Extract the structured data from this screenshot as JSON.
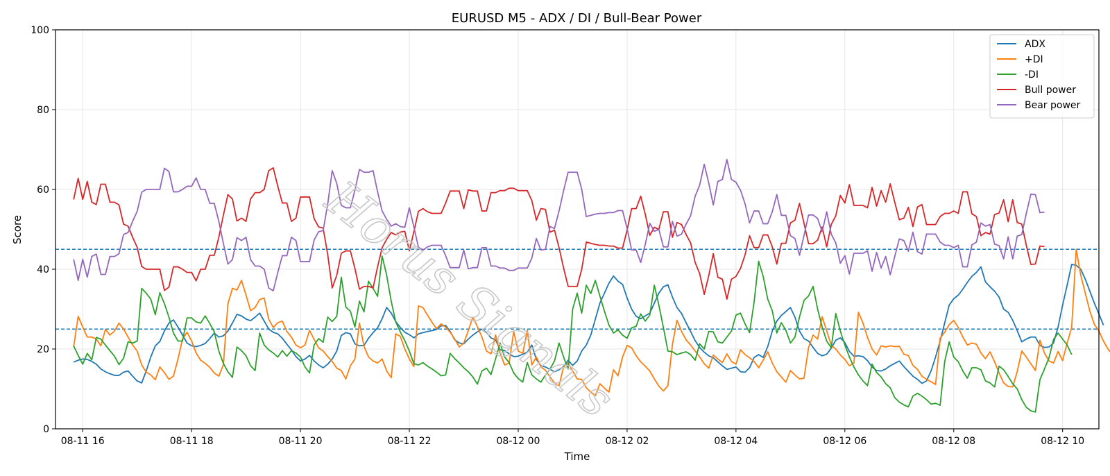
{
  "chart_data": {
    "type": "line",
    "title": "EURUSD M5 - ADX / DI / Bull-Bear Power",
    "xlabel": "Time",
    "ylabel": "Score",
    "ylim": [
      0,
      100
    ],
    "xlim": [
      "2025-08-11 15:30",
      "2025-08-12 10:40"
    ],
    "x_ticks": [
      {
        "t": "2025-08-11 16:00",
        "label": "08-11 16"
      },
      {
        "t": "2025-08-11 18:00",
        "label": "08-11 18"
      },
      {
        "t": "2025-08-11 20:00",
        "label": "08-11 20"
      },
      {
        "t": "2025-08-11 22:00",
        "label": "08-11 22"
      },
      {
        "t": "2025-08-12 00:00",
        "label": "08-12 00"
      },
      {
        "t": "2025-08-12 02:00",
        "label": "08-12 02"
      },
      {
        "t": "2025-08-12 04:00",
        "label": "08-12 04"
      },
      {
        "t": "2025-08-12 06:00",
        "label": "08-12 06"
      },
      {
        "t": "2025-08-12 08:00",
        "label": "08-12 08"
      },
      {
        "t": "2025-08-12 10:00",
        "label": "08-12 10"
      }
    ],
    "y_ticks": [
      0,
      20,
      40,
      60,
      80,
      100
    ],
    "grid": true,
    "legend_position": "top-right",
    "reference_lines": [
      {
        "y": 45,
        "style": "dashed",
        "color": "#1f77b4"
      },
      {
        "y": 25,
        "style": "dashed",
        "color": "#1f77b4"
      }
    ],
    "x_start": "2025-08-11 15:50",
    "x_step_minutes": 5,
    "series": [
      {
        "name": "ADX",
        "color": "#1f77b4",
        "values": [
          16.7,
          17.2,
          17.5,
          17.4,
          16.9,
          16.2,
          15.0,
          14.3,
          13.8,
          13.4,
          13.4,
          14.2,
          14.5,
          13.2,
          12.0,
          11.5,
          14.5,
          18.0,
          20.8,
          21.9,
          24.5,
          26.5,
          27.3,
          25.5,
          23.5,
          21.5,
          20.8,
          20.6,
          20.9,
          21.4,
          22.6,
          24.0,
          23.0,
          23.3,
          24.5,
          26.5,
          28.7,
          28.3,
          27.5,
          27.1,
          28.0,
          29.0,
          27.0,
          25.0,
          24.2,
          23.8,
          22.7,
          21.2,
          19.8,
          18.1,
          17.0,
          17.5,
          18.4,
          17.0,
          16.0,
          15.3,
          16.2,
          17.5,
          19.5,
          23.4,
          24.1,
          23.8,
          21.3,
          20.8,
          20.9,
          22.7,
          24.1,
          25.3,
          27.6,
          30.4,
          29.0,
          26.9,
          25.4,
          24.2,
          23.6,
          22.8,
          23.8,
          24.1,
          24.4,
          24.6,
          24.9,
          25.8,
          25.9,
          24.4,
          22.3,
          21.5,
          21.3,
          22.5,
          23.5,
          24.3,
          25.0,
          24.1,
          22.8,
          22.3,
          19.8,
          19.6,
          18.8,
          18.1,
          18.2,
          18.7,
          19.2,
          21.0,
          17.4,
          15.8,
          15.5,
          14.9,
          14.3,
          14.8,
          15.6,
          17.2,
          15.9,
          17.0,
          19.5,
          21.0,
          23.5,
          27.5,
          31.5,
          34.0,
          36.5,
          38.3,
          37.0,
          36.2,
          32.8,
          30.0,
          28.2,
          27.6,
          28.3,
          29.0,
          31.5,
          34.0,
          35.6,
          36.1,
          33.0,
          30.4,
          28.9,
          26.6,
          24.4,
          22.1,
          20.4,
          19.2,
          18.3,
          17.8,
          16.8,
          15.8,
          14.9,
          15.2,
          15.5,
          14.3,
          14.2,
          15.3,
          17.9,
          18.6,
          17.9,
          20.6,
          24.5,
          27.0,
          28.4,
          29.4,
          30.4,
          28.0,
          24.5,
          22.6,
          22.0,
          20.4,
          18.9,
          18.3,
          18.7,
          20.2,
          22.2,
          22.8,
          21.6,
          19.4,
          18.2,
          18.3,
          18.1,
          17.1,
          15.5,
          14.6,
          14.5,
          15.0,
          15.8,
          16.4,
          17.0,
          15.6,
          14.4,
          13.2,
          12.4,
          11.4,
          12.0,
          14.5,
          18.0,
          22.0,
          26.5,
          31.0,
          32.6,
          33.5,
          35.0,
          36.7,
          38.2,
          39.2,
          40.6,
          36.8,
          35.6,
          34.5,
          33.0,
          30.0,
          29.2,
          27.2,
          24.6,
          21.8,
          22.5,
          23.0,
          23.0,
          20.9,
          20.4,
          20.5,
          21.5,
          25.5,
          31.0,
          36.0,
          41.2,
          41.0,
          40.0,
          37.5,
          34.5,
          31.5,
          28.8,
          26.0
        ]
      },
      {
        "name": "+DI",
        "color": "#ff7f0e",
        "values": [
          20.5,
          28.2,
          25.5,
          23.0,
          23.0,
          22.5,
          20.8,
          24.9,
          23.5,
          24.5,
          26.5,
          25.0,
          23.0,
          21.0,
          19.5,
          16.0,
          14.2,
          13.5,
          12.3,
          15.5,
          14.1,
          12.4,
          13.2,
          17.5,
          22.5,
          24.2,
          22.0,
          19.0,
          17.2,
          16.4,
          15.4,
          14.0,
          13.2,
          16.0,
          31.3,
          35.2,
          34.8,
          37.2,
          33.5,
          29.6,
          30.4,
          32.4,
          32.8,
          27.5,
          25.4,
          26.6,
          27.0,
          24.4,
          23.0,
          21.0,
          20.3,
          21.0,
          24.7,
          22.4,
          20.3,
          19.5,
          18.1,
          16.9,
          15.2,
          14.6,
          12.5,
          15.8,
          17.5,
          26.5,
          20.7,
          18.0,
          17.0,
          16.5,
          17.5,
          14.5,
          12.8,
          23.8,
          23.2,
          20.0,
          17.5,
          15.6,
          30.8,
          30.4,
          28.5,
          26.7,
          25.1,
          26.3,
          25.5,
          24.2,
          22.5,
          20.5,
          21.5,
          24.6,
          28.0,
          25.6,
          23.0,
          19.5,
          18.8,
          23.5,
          19.0,
          16.0,
          16.5,
          24.4,
          19.5,
          18.9,
          24.7,
          16.0,
          18.0,
          15.5,
          14.7,
          13.0,
          11.5,
          10.8,
          15.5,
          16.5,
          14.5,
          12.5,
          12.4,
          10.3,
          9.2,
          8.3,
          11.3,
          10.2,
          9.2,
          14.8,
          13.3,
          18.0,
          20.9,
          20.3,
          18.3,
          16.8,
          15.7,
          14.5,
          12.5,
          10.7,
          9.5,
          10.8,
          21.2,
          27.2,
          24.4,
          22.3,
          21.0,
          19.5,
          18.0,
          16.3,
          15.2,
          18.5,
          17.5,
          16.6,
          18.8,
          16.9,
          16.2,
          19.8,
          18.6,
          17.8,
          16.9,
          15.3,
          17.2,
          19.3,
          16.5,
          14.3,
          13.0,
          11.7,
          14.6,
          13.5,
          12.5,
          12.7,
          20.4,
          23.5,
          22.5,
          28.1,
          24.5,
          21.0,
          20.0,
          18.5,
          17.4,
          15.8,
          16.5,
          29.2,
          26.5,
          22.9,
          20.0,
          18.5,
          20.8,
          20.5,
          20.8,
          20.6,
          20.7,
          18.7,
          18.4,
          15.9,
          14.9,
          13.2,
          12.4,
          11.8,
          11.1,
          22.7,
          24.2,
          26.1,
          27.2,
          25.4,
          23.0,
          21.0,
          21.5,
          21.2,
          19.0,
          17.6,
          19.3,
          16.8,
          14.0,
          11.5,
          10.6,
          10.5,
          14.4,
          19.5,
          18.0,
          16.3,
          14.6,
          22.2,
          19.0,
          17.0,
          16.5,
          19.4,
          17.1,
          21.5,
          25.4,
          45.0,
          38.5,
          34.0,
          29.5,
          26.2,
          24.5,
          22.0,
          20.0,
          18.6,
          17.1,
          21.0
        ]
      },
      {
        "name": "-DI",
        "color": "#2ca02c",
        "values": [
          20.8,
          18.4,
          16.2,
          18.9,
          17.3,
          22.9,
          22.5,
          21.0,
          19.6,
          18.2,
          16.1,
          17.7,
          21.8,
          21.5,
          22.0,
          35.2,
          34.0,
          32.5,
          28.6,
          34.1,
          31.4,
          28.0,
          24.0,
          22.0,
          22.0,
          27.8,
          27.8,
          26.8,
          26.5,
          28.3,
          26.4,
          24.3,
          19.5,
          16.4,
          14.3,
          12.9,
          20.5,
          19.6,
          18.3,
          15.8,
          14.6,
          24.0,
          21.0,
          19.8,
          19.0,
          18.0,
          19.6,
          18.2,
          19.6,
          19.0,
          18.0,
          15.5,
          14.0,
          21.0,
          22.6,
          21.7,
          28.0,
          26.9,
          28.2,
          38.0,
          30.5,
          29.5,
          25.5,
          32.0,
          29.3,
          37.0,
          35.2,
          33.2,
          43.3,
          38.5,
          32.0,
          26.8,
          24.3,
          22.1,
          19.5,
          16.3,
          16.0,
          16.6,
          15.7,
          15.0,
          14.2,
          13.3,
          13.5,
          18.9,
          17.6,
          16.5,
          15.3,
          14.3,
          13.0,
          11.2,
          14.5,
          15.2,
          13.6,
          17.5,
          21.5,
          18.0,
          16.6,
          14.0,
          12.6,
          11.7,
          16.6,
          13.5,
          12.5,
          11.7,
          13.5,
          15.0,
          17.0,
          21.5,
          18.0,
          15.0,
          30.0,
          34.0,
          29.0,
          36.0,
          33.9,
          37.2,
          33.3,
          29.5,
          26.0,
          24.0,
          24.8,
          23.5,
          22.7,
          25.3,
          25.7,
          28.8,
          27.0,
          28.5,
          36.0,
          31.0,
          25.4,
          19.5,
          19.3,
          18.6,
          19.0,
          19.3,
          18.6,
          17.2,
          21.3,
          20.0,
          24.4,
          24.3,
          21.8,
          21.5,
          23.0,
          24.5,
          28.5,
          29.0,
          26.3,
          24.1,
          31.8,
          42.0,
          38.2,
          32.5,
          29.6,
          24.0,
          26.6,
          24.7,
          21.5,
          23.0,
          28.0,
          32.2,
          33.3,
          35.7,
          30.0,
          25.5,
          22.0,
          20.3,
          28.9,
          24.5,
          21.0,
          18.0,
          15.5,
          13.5,
          12.0,
          10.8,
          16.2,
          14.1,
          13.0,
          11.3,
          10.3,
          7.8,
          6.7,
          6.0,
          5.5,
          8.2,
          8.9,
          8.2,
          7.3,
          6.2,
          6.4,
          5.9,
          16.8,
          21.8,
          18.0,
          16.8,
          14.5,
          12.7,
          15.3,
          15.3,
          14.8,
          12.0,
          11.5,
          10.5,
          15.7,
          14.8,
          13.1,
          11.3,
          10.0,
          7.3,
          5.4,
          4.5,
          4.2,
          12.3,
          15.0,
          17.8,
          22.4,
          24.0,
          22.5,
          21.0,
          18.6
        ]
      },
      {
        "name": "Bull power",
        "color": "#d62728",
        "values": [
          57.5,
          62.8,
          57.5,
          62.0,
          56.8,
          56.2,
          61.3,
          61.3,
          56.8,
          56.8,
          56.1,
          51.3,
          50.8,
          48.0,
          45.5,
          40.7,
          40.0,
          40.0,
          40.0,
          40.0,
          34.7,
          35.5,
          40.6,
          40.6,
          40.0,
          39.2,
          39.2,
          37.1,
          40.0,
          40.0,
          43.5,
          43.5,
          48.0,
          53.5,
          58.7,
          57.6,
          52.1,
          52.8,
          52.0,
          57.6,
          59.2,
          59.2,
          60.0,
          64.7,
          65.4,
          60.8,
          56.6,
          56.6,
          52.0,
          52.8,
          58.1,
          58.1,
          58.1,
          52.7,
          50.6,
          50.3,
          43.7,
          35.3,
          38.5,
          44.0,
          44.6,
          44.6,
          40.2,
          35.0,
          35.7,
          35.7,
          35.3,
          40.6,
          45.4,
          47.5,
          49.2,
          48.6,
          49.3,
          49.5,
          44.6,
          49.4,
          54.5,
          55.2,
          54.4,
          54.0,
          54.0,
          54.0,
          56.6,
          59.6,
          59.6,
          59.6,
          55.2,
          59.9,
          59.6,
          59.6,
          54.6,
          54.6,
          59.2,
          59.2,
          59.7,
          59.7,
          60.3,
          60.3,
          59.7,
          59.7,
          59.7,
          57.2,
          52.3,
          55.2,
          55.0,
          49.3,
          49.8,
          45.4,
          40.3,
          35.7,
          35.7,
          35.7,
          40.0,
          46.8,
          46.5,
          46.2,
          46.0,
          46.0,
          45.8,
          45.8,
          45.3,
          45.3,
          49.8,
          55.2,
          55.2,
          58.3,
          53.8,
          48.5,
          50.5,
          50.0,
          54.4,
          54.4,
          48.0,
          51.7,
          51.2,
          48.7,
          46.6,
          41.7,
          38.9,
          33.7,
          38.4,
          43.9,
          38.0,
          37.5,
          32.5,
          37.5,
          38.2,
          40.2,
          43.6,
          48.4,
          45.4,
          45.4,
          48.6,
          48.6,
          45.6,
          41.3,
          46.5,
          46.5,
          51.6,
          52.3,
          56.5,
          51.5,
          46.4,
          46.4,
          47.3,
          50.6,
          45.6,
          51.2,
          53.4,
          58.5,
          56.6,
          61.2,
          56.0,
          56.0,
          56.0,
          55.4,
          60.5,
          55.8,
          59.7,
          56.8,
          61.4,
          56.8,
          52.4,
          52.8,
          55.5,
          50.7,
          55.6,
          56.2,
          51.2,
          51.2,
          51.2,
          53.2,
          54.0,
          54.0,
          54.6,
          54.0,
          59.4,
          59.4,
          53.9,
          53.2,
          48.4,
          49.2,
          48.8,
          53.7,
          54.1,
          57.4,
          51.9,
          57.4,
          51.7,
          51.3,
          46.0,
          41.2,
          41.3,
          45.8,
          45.7
        ]
      },
      {
        "name": "Bear power",
        "color": "#9467bd",
        "values": [
          42.5,
          37.2,
          42.5,
          38.0,
          43.2,
          43.8,
          38.7,
          38.7,
          43.2,
          43.2,
          43.9,
          48.7,
          49.2,
          52.0,
          54.5,
          59.3,
          60.0,
          60.0,
          60.0,
          60.0,
          65.3,
          64.5,
          59.4,
          59.4,
          60.0,
          60.8,
          60.8,
          62.9,
          60.0,
          60.0,
          56.5,
          56.5,
          52.0,
          46.5,
          41.3,
          42.4,
          47.9,
          47.2,
          48.0,
          42.4,
          40.8,
          40.8,
          40.0,
          35.3,
          34.6,
          39.2,
          43.4,
          43.4,
          48.0,
          47.2,
          41.9,
          41.9,
          41.9,
          47.3,
          49.4,
          49.7,
          56.3,
          64.7,
          61.5,
          56.0,
          55.4,
          55.4,
          59.8,
          65.0,
          64.3,
          64.3,
          64.7,
          59.4,
          54.6,
          52.5,
          50.8,
          51.4,
          50.7,
          50.5,
          55.4,
          50.6,
          45.5,
          44.8,
          45.6,
          46.0,
          46.0,
          46.0,
          43.4,
          40.4,
          40.4,
          40.4,
          44.8,
          40.1,
          40.4,
          40.4,
          45.4,
          45.4,
          40.8,
          40.8,
          40.3,
          40.3,
          39.7,
          39.7,
          40.3,
          40.3,
          40.3,
          42.8,
          47.7,
          44.8,
          45.0,
          50.7,
          50.2,
          54.6,
          59.7,
          64.3,
          64.3,
          64.3,
          60.0,
          53.2,
          53.5,
          53.8,
          54.0,
          54.0,
          54.2,
          54.2,
          54.7,
          54.7,
          50.2,
          44.8,
          44.8,
          41.7,
          46.2,
          51.5,
          49.5,
          50.0,
          45.6,
          45.6,
          52.0,
          48.3,
          48.8,
          51.3,
          53.4,
          58.3,
          61.1,
          66.3,
          61.6,
          56.1,
          62.0,
          62.5,
          67.5,
          62.5,
          61.8,
          59.8,
          56.4,
          51.6,
          54.6,
          54.6,
          51.4,
          51.4,
          54.4,
          58.7,
          53.5,
          53.5,
          48.4,
          47.7,
          43.5,
          48.5,
          53.6,
          53.6,
          52.7,
          49.4,
          54.4,
          48.8,
          46.6,
          41.5,
          43.4,
          38.8,
          44.0,
          44.0,
          44.0,
          44.6,
          39.5,
          44.2,
          40.3,
          43.2,
          38.6,
          43.2,
          47.6,
          47.2,
          44.5,
          49.3,
          44.4,
          43.8,
          48.8,
          48.8,
          48.8,
          46.8,
          46.0,
          46.0,
          45.4,
          46.0,
          40.6,
          40.6,
          46.1,
          46.8,
          51.6,
          50.8,
          51.2,
          46.3,
          45.9,
          42.6,
          48.1,
          42.6,
          48.3,
          48.7,
          54.0,
          58.8,
          58.7,
          54.2,
          54.3
        ]
      }
    ]
  }
}
